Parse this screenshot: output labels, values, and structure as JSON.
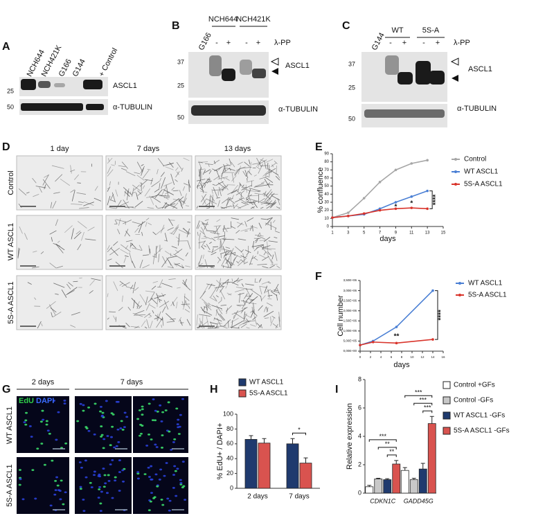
{
  "blots": [
    {
      "label": "A",
      "lanes": [
        "NCH644",
        "NCH421K",
        "G166",
        "G144",
        "+ Control"
      ],
      "markers": [
        "25",
        "50"
      ],
      "proteins": [
        "ASCL1",
        "α-TUBULIN"
      ]
    },
    {
      "label": "B",
      "lanes": [
        "G166",
        "NCH644",
        "NCH421K"
      ],
      "treatment_signs": [
        "-",
        "+",
        "-",
        "+"
      ],
      "treatment": "λ-PP",
      "markers": [
        "37",
        "25",
        "50"
      ],
      "proteins": [
        "ASCL1",
        "α-TUBULIN"
      ]
    },
    {
      "label": "C",
      "lanes": [
        "G144",
        "WT",
        "5S-A"
      ],
      "treatment_signs": [
        "-",
        "+",
        "-",
        "+"
      ],
      "treatment": "λ-PP",
      "markers": [
        "37",
        "25",
        "50"
      ],
      "proteins": [
        "ASCL1",
        "α-TUBULIN"
      ]
    }
  ],
  "micrographs": {
    "label": "D",
    "columns": [
      "1 day",
      "7 days",
      "13 days"
    ],
    "rows": [
      "Control",
      "WT ASCL1",
      "5S-A ASCL1"
    ]
  },
  "immunofluorescence": {
    "label": "G",
    "stains": [
      "EdU",
      "DAPI"
    ],
    "columns": [
      "2 days",
      "7 days"
    ],
    "rows": [
      "WT ASCL1",
      "5S-A ASCL1"
    ]
  },
  "chart_data": [
    {
      "label": "E",
      "type": "line",
      "x_label": "days",
      "y_label": "% confluence",
      "x": [
        1,
        3,
        5,
        7,
        9,
        11,
        13
      ],
      "xlim": [
        1,
        15
      ],
      "xticks": [
        1,
        3,
        5,
        7,
        9,
        11,
        13,
        15
      ],
      "ylim": [
        0,
        90
      ],
      "yticks": [
        0,
        10,
        20,
        30,
        40,
        50,
        60,
        70,
        80,
        90
      ],
      "series": [
        {
          "name": "Control",
          "color": "#a6a6a6",
          "values": [
            11,
            17,
            35,
            55,
            70,
            78,
            82
          ]
        },
        {
          "name": "WT ASCL1",
          "color": "#4a7fd4",
          "values": [
            11,
            13,
            15,
            22,
            30,
            37,
            44
          ]
        },
        {
          "name": "5S-A ASCL1",
          "color": "#d9342b",
          "values": [
            11,
            13,
            16,
            20,
            22,
            23,
            22
          ]
        }
      ],
      "annotations": [
        {
          "x": 9,
          "text": "*"
        },
        {
          "x": 11,
          "text": "*"
        },
        {
          "x": 13,
          "text": "****"
        }
      ]
    },
    {
      "label": "F",
      "type": "line",
      "x_label": "days",
      "y_label": "Cell number",
      "x": [
        0,
        2.5,
        7,
        14
      ],
      "xlim": [
        0,
        16
      ],
      "xticks": [
        0,
        2,
        4,
        6,
        8,
        10,
        12,
        14,
        16
      ],
      "ylim": [
        0,
        3500000
      ],
      "yticks": [
        {
          "value": 0,
          "label": "0,00E+00"
        },
        {
          "value": 500000,
          "label": "5,00E+05"
        },
        {
          "value": 1000000,
          "label": "1,00E+06"
        },
        {
          "value": 1500000,
          "label": "1,50E+06"
        },
        {
          "value": 2000000,
          "label": "2,00E+06"
        },
        {
          "value": 2500000,
          "label": "2,50E+06"
        },
        {
          "value": 3000000,
          "label": "3,00E+06"
        },
        {
          "value": 3500000,
          "label": "3,50E+06"
        }
      ],
      "series": [
        {
          "name": "WT ASCL1",
          "color": "#4a7fd4",
          "values": [
            300000,
            500000,
            1200000,
            3000000
          ]
        },
        {
          "name": "5S-A ASCL1",
          "color": "#d9342b",
          "values": [
            300000,
            450000,
            400000,
            580000
          ]
        }
      ],
      "annotations": [
        {
          "x": 7,
          "text": "**"
        },
        {
          "x": 14,
          "text": "****"
        }
      ]
    },
    {
      "label": "H",
      "type": "bar",
      "y_label": "% EdU+ / DAPI+",
      "categories": [
        "2 days",
        "7 days"
      ],
      "ylim": [
        0,
        100
      ],
      "yticks": [
        0,
        20,
        40,
        60,
        80,
        100
      ],
      "series": [
        {
          "name": "WT ASCL1",
          "color": "#1f3a6e",
          "values": [
            66,
            60
          ],
          "errors": [
            5,
            7
          ]
        },
        {
          "name": "5S-A ASCL1",
          "color": "#d9534f",
          "values": [
            61,
            34
          ],
          "errors": [
            6,
            7
          ]
        }
      ],
      "significance": [
        [],
        [
          "*"
        ]
      ]
    },
    {
      "label": "I",
      "type": "bar",
      "y_label": "Relative expression",
      "categories": [
        "CDKN1C",
        "GADD45G"
      ],
      "ylim": [
        0,
        8
      ],
      "yticks": [
        0,
        2,
        4,
        6,
        8
      ],
      "series": [
        {
          "name": "Control +GFs",
          "color": "#ffffff",
          "values": [
            0.45,
            1.6
          ],
          "errors": [
            0.1,
            0.2
          ]
        },
        {
          "name": "Control -GFs",
          "color": "#c8c8c8",
          "values": [
            1.0,
            0.95
          ],
          "errors": [
            0.05,
            0.1
          ]
        },
        {
          "name": "WT ASCL1 -GFs",
          "color": "#1f3a6e",
          "values": [
            0.95,
            1.7
          ],
          "errors": [
            0.07,
            0.4
          ]
        },
        {
          "name": "5S-A ASCL1 -GFs",
          "color": "#d9534f",
          "values": [
            2.05,
            4.9
          ],
          "errors": [
            0.25,
            0.5
          ]
        }
      ],
      "significance": [
        [
          "***",
          "**",
          "**"
        ],
        [
          "***",
          "***",
          "***"
        ]
      ]
    }
  ]
}
